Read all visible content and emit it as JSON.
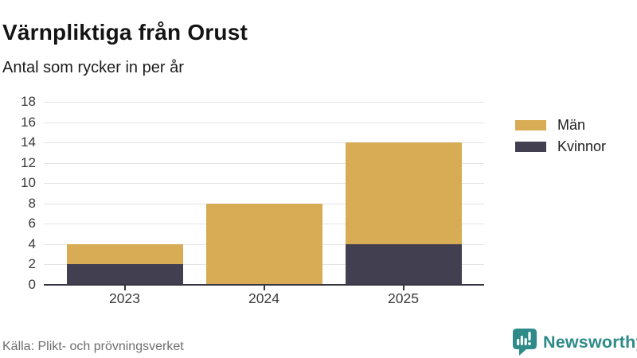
{
  "header": {
    "title": "Värnpliktiga från Orust",
    "subtitle": "Antal som rycker in per år"
  },
  "chart_data": {
    "type": "bar",
    "stacked": true,
    "categories": [
      "2023",
      "2024",
      "2025"
    ],
    "series": [
      {
        "name": "Män",
        "color": "#d8ab55",
        "values": [
          2,
          8,
          10
        ]
      },
      {
        "name": "Kvinnor",
        "color": "#413f50",
        "values": [
          2,
          0,
          4
        ]
      }
    ],
    "totals": [
      4,
      8,
      14
    ],
    "title": "Värnpliktiga från Orust",
    "subtitle": "Antal som rycker in per år",
    "xlabel": "",
    "ylabel": "",
    "ylim": [
      0,
      18
    ],
    "ytick_step": 2,
    "grid": true,
    "legend_position": "right",
    "axis_color": "#35343f",
    "gridline_color": "#e4e4e4"
  },
  "legend": {
    "items": [
      {
        "label": "Män",
        "color": "#d8ab55"
      },
      {
        "label": "Kvinnor",
        "color": "#413f50"
      }
    ]
  },
  "footer": {
    "source": "Källa: Plikt- och prövningsverket",
    "brand": "Newsworthy",
    "brand_color": "#2e8b89"
  },
  "icons": {
    "brand_logo": "bar-chart-speech-bubble-icon"
  }
}
